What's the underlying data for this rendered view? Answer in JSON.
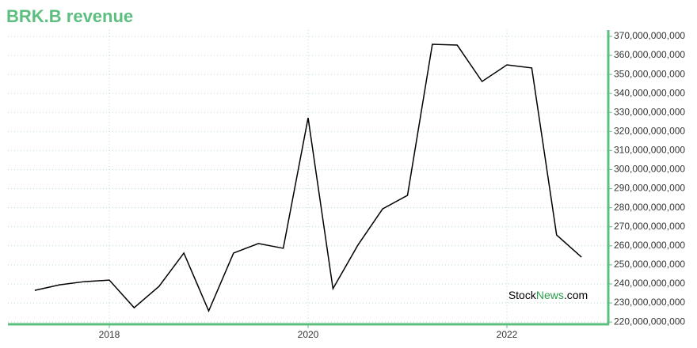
{
  "chart_data": {
    "type": "line",
    "title": "BRK.B revenue",
    "x": [
      2017.25,
      2017.5,
      2017.75,
      2018,
      2018.25,
      2018.5,
      2018.75,
      2019,
      2019.25,
      2019.5,
      2019.75,
      2020,
      2020.25,
      2020.5,
      2020.75,
      2021,
      2021.25,
      2021.5,
      2021.75,
      2022,
      2022.25,
      2022.5,
      2022.75
    ],
    "series": [
      {
        "name": "BRK.B revenue",
        "color": "#000000",
        "values": [
          236600000000,
          239500000000,
          241200000000,
          242000000000,
          227500000000,
          238700000000,
          256200000000,
          225800000000,
          256200000000,
          261200000000,
          258700000000,
          327200000000,
          237500000000,
          260300000000,
          279400000000,
          286500000000,
          365800000000,
          365400000000,
          346300000000,
          355000000000,
          353400000000,
          265700000000,
          254100000000
        ]
      }
    ],
    "xlim": [
      2016.98,
      2023.02
    ],
    "xticks": [
      2018,
      2020,
      2022
    ],
    "ylim": [
      218800000000,
      373300000000
    ],
    "yticks": [
      {
        "value": 220000000000,
        "label": "220,000,000,000"
      },
      {
        "value": 230000000000,
        "label": "230,000,000,000"
      },
      {
        "value": 240000000000,
        "label": "240,000,000,000"
      },
      {
        "value": 250000000000,
        "label": "250,000,000,000"
      },
      {
        "value": 260000000000,
        "label": "260,000,000,000"
      },
      {
        "value": 270000000000,
        "label": "270,000,000,000"
      },
      {
        "value": 280000000000,
        "label": "280,000,000,000"
      },
      {
        "value": 290000000000,
        "label": "290,000,000,000"
      },
      {
        "value": 300000000000,
        "label": "300,000,000,000"
      },
      {
        "value": 310000000000,
        "label": "310,000,000,000"
      },
      {
        "value": 320000000000,
        "label": "320,000,000,000"
      },
      {
        "value": 330000000000,
        "label": "330,000,000,000"
      },
      {
        "value": 340000000000,
        "label": "340,000,000,000"
      },
      {
        "value": 350000000000,
        "label": "350,000,000,000"
      },
      {
        "value": 360000000000,
        "label": "360,000,000,000"
      },
      {
        "value": 370000000000,
        "label": "370,000,000,000"
      }
    ],
    "grid": true,
    "y_axis_side": "right",
    "watermark": [
      "Stock",
      "News",
      ".com"
    ]
  }
}
